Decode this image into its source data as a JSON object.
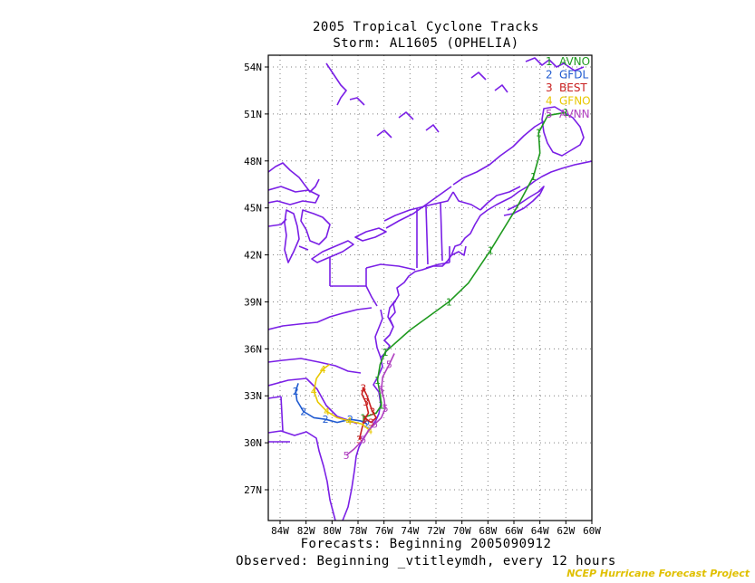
{
  "title": "2005 Tropical Cyclone Tracks",
  "subtitle": "Storm: AL1605 (OPHELIA)",
  "footer_forecasts": "Forecasts: Beginning 2005090912",
  "footer_observed": "Observed: Beginning _vtitleymdh, every 12 hours",
  "credit": "NCEP Hurricane Forecast Project",
  "colors": {
    "coast": "#7a1fe6",
    "grid": "#808080",
    "AVNO": "#1f9a1f",
    "GFDL": "#1f5ad0",
    "BEST": "#c81e1e",
    "GFNO": "#e8c800",
    "AVNN": "#b040c0"
  },
  "legend": [
    {
      "num": "1",
      "name": "AVNO",
      "color": "#1f9a1f"
    },
    {
      "num": "2",
      "name": "GFDL",
      "color": "#1f5ad0"
    },
    {
      "num": "3",
      "name": "BEST",
      "color": "#c81e1e"
    },
    {
      "num": "4",
      "name": "GFNO",
      "color": "#e8c800"
    },
    {
      "num": "5",
      "name": "AVNN",
      "color": "#b040c0"
    }
  ],
  "lat_labels": [
    "54N",
    "51N",
    "48N",
    "45N",
    "42N",
    "39N",
    "36N",
    "33N",
    "30N",
    "27N"
  ],
  "lon_labels": [
    "84W",
    "82W",
    "80W",
    "78W",
    "76W",
    "74W",
    "72W",
    "70W",
    "68W",
    "66W",
    "64W",
    "62W",
    "60W"
  ],
  "chart_data": {
    "type": "map",
    "xlim": [
      -85,
      -60
    ],
    "ylim": [
      25,
      55
    ],
    "lat_ticks": [
      54,
      51,
      48,
      45,
      42,
      39,
      36,
      33,
      30,
      27
    ],
    "lon_ticks": [
      -84,
      -82,
      -80,
      -78,
      -76,
      -74,
      -72,
      -70,
      -68,
      -66,
      -64,
      -62,
      -60
    ],
    "series": [
      {
        "name": "AVNO",
        "num": "1",
        "points": [
          [
            -77.6,
            31.6
          ],
          [
            -76.6,
            31.9
          ],
          [
            -76.2,
            32.4
          ],
          [
            -76.3,
            33.1
          ],
          [
            -76.5,
            34.0
          ],
          [
            -76.3,
            35.0
          ],
          [
            -75.9,
            35.8
          ],
          [
            -74.0,
            37.2
          ],
          [
            -71.0,
            39.0
          ],
          [
            -69.5,
            40.2
          ],
          [
            -67.8,
            42.3
          ],
          [
            -65.8,
            45.0
          ],
          [
            -64.5,
            47.0
          ],
          [
            -64.0,
            48.5
          ],
          [
            -64.1,
            49.8
          ],
          [
            -63.4,
            50.9
          ],
          [
            -62.0,
            51.1
          ]
        ]
      },
      {
        "name": "GFDL",
        "num": "2",
        "points": [
          [
            -77.3,
            31.2
          ],
          [
            -77.8,
            31.4
          ],
          [
            -78.6,
            31.5
          ],
          [
            -79.6,
            31.3
          ],
          [
            -80.5,
            31.5
          ],
          [
            -81.4,
            31.6
          ],
          [
            -82.2,
            32.0
          ],
          [
            -82.7,
            32.7
          ],
          [
            -82.8,
            33.3
          ],
          [
            -82.6,
            33.8
          ]
        ]
      },
      {
        "name": "BEST",
        "num": "3",
        "points": [
          [
            -77.9,
            30.2
          ],
          [
            -77.7,
            30.9
          ],
          [
            -77.5,
            31.5
          ],
          [
            -77.2,
            31.9
          ],
          [
            -77.4,
            32.6
          ],
          [
            -77.7,
            33.1
          ],
          [
            -77.6,
            33.5
          ],
          [
            -77.3,
            33.0
          ],
          [
            -76.9,
            32.0
          ],
          [
            -76.6,
            31.6
          ],
          [
            -77.0,
            31.3
          ],
          [
            -77.5,
            31.6
          ]
        ]
      },
      {
        "name": "GFNO",
        "num": "4",
        "points": [
          [
            -77.1,
            30.8
          ],
          [
            -77.7,
            31.2
          ],
          [
            -78.7,
            31.4
          ],
          [
            -79.6,
            31.6
          ],
          [
            -80.4,
            32.0
          ],
          [
            -81.1,
            32.6
          ],
          [
            -81.4,
            33.3
          ],
          [
            -81.2,
            34.1
          ],
          [
            -80.7,
            34.7
          ],
          [
            -80.2,
            35.0
          ]
        ]
      },
      {
        "name": "AVNN",
        "num": "5",
        "points": [
          [
            -78.9,
            29.2
          ],
          [
            -78.3,
            29.6
          ],
          [
            -77.6,
            30.2
          ],
          [
            -77.2,
            30.8
          ],
          [
            -76.7,
            31.2
          ],
          [
            -76.2,
            31.6
          ],
          [
            -75.9,
            32.2
          ],
          [
            -76.0,
            32.8
          ],
          [
            -76.2,
            33.4
          ],
          [
            -76.1,
            34.2
          ],
          [
            -75.6,
            35.0
          ],
          [
            -75.2,
            35.7
          ]
        ]
      }
    ]
  }
}
